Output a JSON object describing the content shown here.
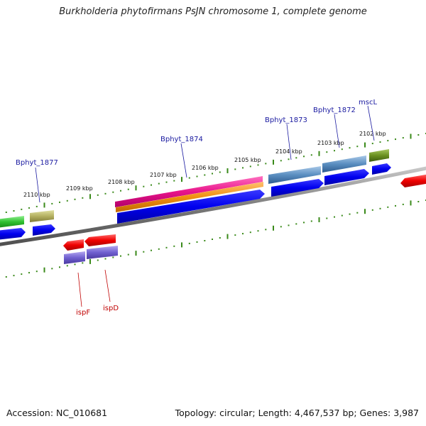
{
  "title": "Burkholderia phytofirmans PsJN chromosome 1, complete genome",
  "footer": {
    "accession": "Accession: NC_010681",
    "summary": "Topology: circular; Length: 4,467,537 bp; Genes: 3,987"
  },
  "colors": {
    "backbone": "#808080",
    "tick": "#3a8a1a",
    "label_forward": "#1a1aa0",
    "label_reverse": "#c00000"
  },
  "scale": {
    "ticks": [
      {
        "label": "2110 kbp"
      },
      {
        "label": "2109 kbp"
      },
      {
        "label": "2108 kbp"
      },
      {
        "label": "2107 kbp"
      },
      {
        "label": "2106 kbp"
      },
      {
        "label": "2105 kbp"
      },
      {
        "label": "2104 kbp"
      },
      {
        "label": "2103 kbp"
      },
      {
        "label": "2102 kbp"
      }
    ]
  },
  "gene_labels": {
    "forward": [
      "Bphyt_1877",
      "Bphyt_1874",
      "Bphyt_1873",
      "Bphyt_1872",
      "mscL"
    ],
    "reverse": [
      "ispF",
      "ispD"
    ]
  }
}
